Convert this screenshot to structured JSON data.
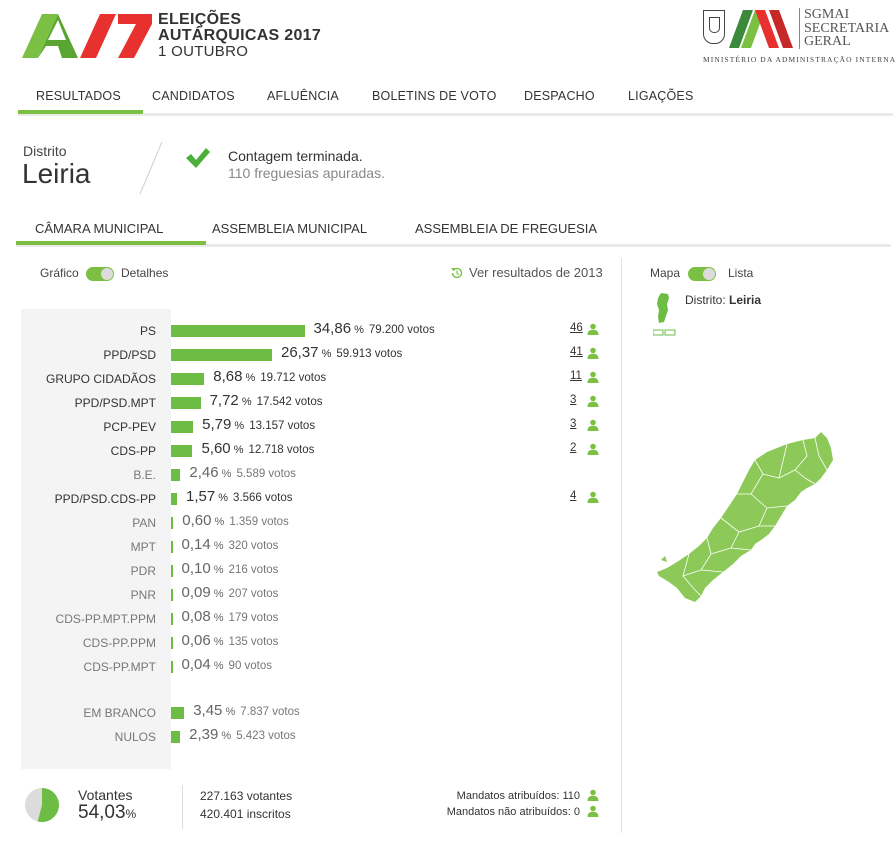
{
  "header": {
    "logo_line1": "ELEIÇÕES",
    "logo_line2": "AUTÁRQUICAS 2017",
    "logo_line3": "1 OUTUBRO",
    "org_line1": "SGMAI",
    "org_line2": "SECRETARIA",
    "org_line3": "GERAL",
    "ministry": "MINISTÉRIO DA ADMINISTRAÇÃO INTERNA"
  },
  "nav": [
    {
      "label": "RESULTADOS",
      "active": true
    },
    {
      "label": "CANDIDATOS"
    },
    {
      "label": "AFLUÊNCIA"
    },
    {
      "label": "BOLETINS DE VOTO"
    },
    {
      "label": "DESPACHO"
    },
    {
      "label": "LIGAÇÕES"
    }
  ],
  "district": {
    "label": "Distrito",
    "name": "Leiria",
    "status": "Contagem terminada.",
    "parishes": "110 freguesias apuradas."
  },
  "tabs": [
    {
      "label": "CÂMARA MUNICIPAL",
      "active": true
    },
    {
      "label": "ASSEMBLEIA MUNICIPAL"
    },
    {
      "label": "ASSEMBLEIA DE FREGUESIA"
    }
  ],
  "view_toggle": {
    "left": "Gráfico",
    "right": "Detalhes"
  },
  "map_toggle": {
    "left": "Mapa",
    "right": "Lista"
  },
  "previous_link": "Ver resultados de 2013",
  "results": [
    {
      "party": "PS",
      "pct": "34,86",
      "pct_value": 34.86,
      "votes": "79.200 votos",
      "seats": "46"
    },
    {
      "party": "PPD/PSD",
      "pct": "26,37",
      "pct_value": 26.37,
      "votes": "59.913 votos",
      "seats": "41"
    },
    {
      "party": "GRUPO CIDADÃOS",
      "pct": "8,68",
      "pct_value": 8.68,
      "votes": "19.712 votos",
      "seats": "11"
    },
    {
      "party": "PPD/PSD.MPT",
      "pct": "7,72",
      "pct_value": 7.72,
      "votes": "17.542 votos",
      "seats": "3"
    },
    {
      "party": "PCP-PEV",
      "pct": "5,79",
      "pct_value": 5.79,
      "votes": "13.157 votos",
      "seats": "3"
    },
    {
      "party": "CDS-PP",
      "pct": "5,60",
      "pct_value": 5.6,
      "votes": "12.718 votos",
      "seats": "2"
    },
    {
      "party": "B.E.",
      "pct": "2,46",
      "pct_value": 2.46,
      "votes": "5.589 votos",
      "seats": ""
    },
    {
      "party": "PPD/PSD.CDS-PP",
      "pct": "1,57",
      "pct_value": 1.57,
      "votes": "3.566 votos",
      "seats": "4"
    },
    {
      "party": "PAN",
      "pct": "0,60",
      "pct_value": 0.6,
      "votes": "1.359 votos",
      "seats": ""
    },
    {
      "party": "MPT",
      "pct": "0,14",
      "pct_value": 0.14,
      "votes": "320 votos",
      "seats": ""
    },
    {
      "party": "PDR",
      "pct": "0,10",
      "pct_value": 0.1,
      "votes": "216 votos",
      "seats": ""
    },
    {
      "party": "PNR",
      "pct": "0,09",
      "pct_value": 0.09,
      "votes": "207 votos",
      "seats": ""
    },
    {
      "party": "CDS-PP.MPT.PPM",
      "pct": "0,08",
      "pct_value": 0.08,
      "votes": "179 votos",
      "seats": ""
    },
    {
      "party": "CDS-PP.PPM",
      "pct": "0,06",
      "pct_value": 0.06,
      "votes": "135 votos",
      "seats": ""
    },
    {
      "party": "CDS-PP.MPT",
      "pct": "0,04",
      "pct_value": 0.04,
      "votes": "90 votos",
      "seats": ""
    }
  ],
  "blank_null": [
    {
      "party": "EM BRANCO",
      "pct": "3,45",
      "pct_value": 3.45,
      "votes": "7.837 votos"
    },
    {
      "party": "NULOS",
      "pct": "2,39",
      "pct_value": 2.39,
      "votes": "5.423 votos"
    }
  ],
  "turnout": {
    "label": "Votantes",
    "pct": "54,03",
    "pct_value": 54.03,
    "voters": "227.163 votantes",
    "registered": "420.401 inscritos"
  },
  "mandates": {
    "assigned": "Mandatos atribuídos: 110",
    "unassigned": "Mandatos não atribuídos: 0"
  },
  "map": {
    "district_label": "Distrito:",
    "district_name": "Leiria"
  },
  "colors": {
    "accent": "#7bc043",
    "bar": "#6dbd45",
    "map": "#8cc958"
  }
}
